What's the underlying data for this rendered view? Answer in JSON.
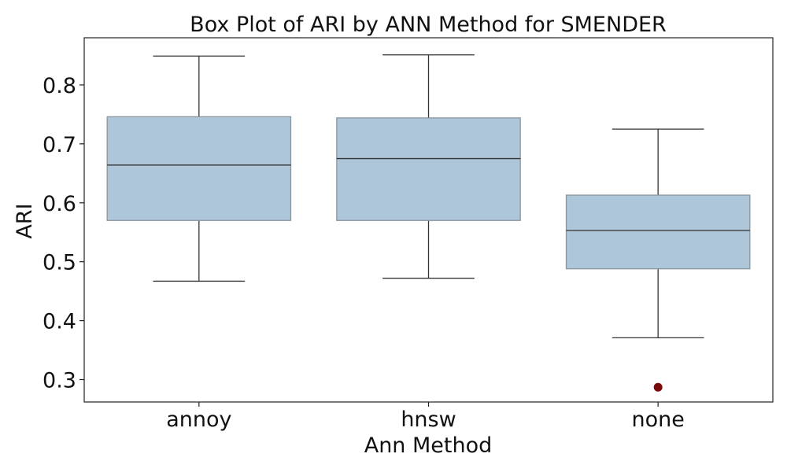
{
  "chart_data": {
    "type": "box",
    "title": "Box Plot of ARI by ANN Method for SMENDER",
    "xlabel": "Ann Method",
    "ylabel": "ARI",
    "ylim": [
      0.262,
      0.88
    ],
    "yticks": [
      0.3,
      0.4,
      0.5,
      0.6,
      0.7,
      0.8
    ],
    "ytick_labels": [
      "0.3",
      "0.4",
      "0.5",
      "0.6",
      "0.7",
      "0.8"
    ],
    "categories": [
      "annoy",
      "hnsw",
      "none"
    ],
    "boxes": [
      {
        "category": "annoy",
        "whisker_low": 0.467,
        "q1": 0.57,
        "median": 0.664,
        "q3": 0.746,
        "whisker_high": 0.849,
        "outliers": []
      },
      {
        "category": "hnsw",
        "whisker_low": 0.472,
        "q1": 0.57,
        "median": 0.675,
        "q3": 0.744,
        "whisker_high": 0.851,
        "outliers": []
      },
      {
        "category": "none",
        "whisker_low": 0.371,
        "q1": 0.488,
        "median": 0.553,
        "q3": 0.613,
        "whisker_high": 0.725,
        "outliers": [
          0.287
        ]
      }
    ],
    "colors": {
      "box_fill": "#aec6d9",
      "box_edge": "#8a969e",
      "line": "#333333",
      "outlier": "#7a0a0a"
    },
    "grid": false,
    "legend": "none"
  }
}
